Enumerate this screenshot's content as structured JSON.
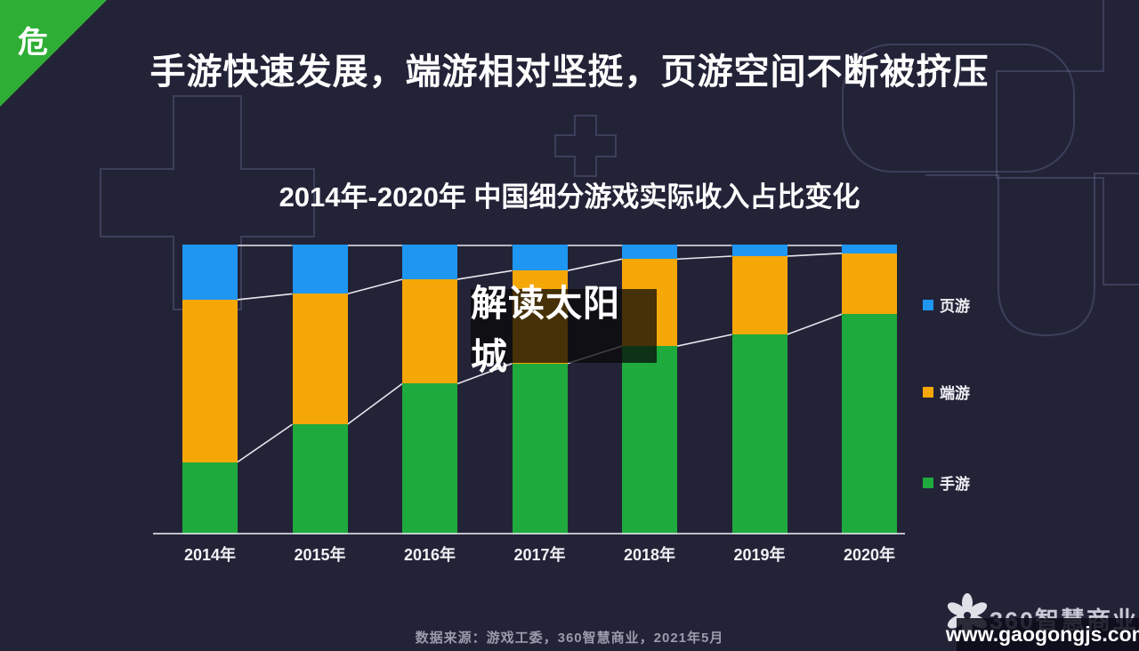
{
  "page": {
    "corner_badge": "危",
    "main_title": "手游快速发展，端游相对坚挺，页游空间不断被挤压",
    "watermark": "解读太阳城",
    "footer_source": "数据来源：游戏工委，360智慧商业，2021年5月",
    "brand_logo_text": "360智慧商业",
    "brand_url": "www.gaogongjs.com"
  },
  "colors": {
    "background": "#232338",
    "badge_green": "#2fae36",
    "web_blue": "#1e96f2",
    "client_orange": "#f5a708",
    "mobile_green": "#1faa3d",
    "axis": "#d9dae2",
    "connector_line": "#f2f3f8"
  },
  "chart_data": {
    "type": "bar",
    "stacked": true,
    "title": "2014年-2020年 中国细分游戏实际收入占比变化",
    "xlabel": "",
    "ylabel": "",
    "unit": "%",
    "ylim": [
      0,
      100
    ],
    "grid": false,
    "legend_position": "right",
    "connector_lines": true,
    "categories": [
      "2014年",
      "2015年",
      "2016年",
      "2017年",
      "2018年",
      "2019年",
      "2020年"
    ],
    "series": [
      {
        "name": "手游",
        "color": "#1faa3d",
        "values": [
          25,
          38,
          52,
          59,
          65,
          69,
          76
        ]
      },
      {
        "name": "端游",
        "color": "#f5a708",
        "values": [
          56,
          45,
          36,
          32,
          30,
          27,
          21
        ]
      },
      {
        "name": "页游",
        "color": "#1e96f2",
        "values": [
          19,
          17,
          12,
          9,
          5,
          4,
          3
        ]
      }
    ],
    "legend": [
      {
        "label": "页游",
        "color": "#1e96f2"
      },
      {
        "label": "端游",
        "color": "#f5a708"
      },
      {
        "label": "手游",
        "color": "#1faa3d"
      }
    ]
  }
}
